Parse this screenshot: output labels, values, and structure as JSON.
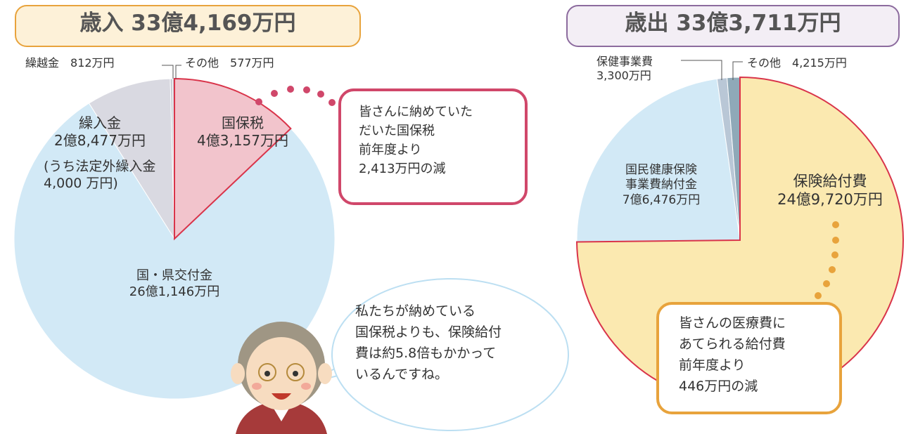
{
  "chart_data": [
    {
      "type": "pie",
      "title": "歳入 33億4,169万円",
      "categories": [
        "国保税",
        "国・県交付金",
        "繰入金",
        "繰越金",
        "その他"
      ],
      "values": [
        43157,
        261146,
        28477,
        812,
        577
      ],
      "value_labels": [
        "4億3,157万円",
        "26億1,146万円",
        "2億8,477万円",
        "812万円",
        "577万円"
      ],
      "colors": [
        "#f2c4cc",
        "#d2e9f6",
        "#d9d9e1",
        "#c9ccd4",
        "#b7bcc6"
      ],
      "annotations": [
        "皆さんに納めていた\nだいた国保税\n前年度より\n2,413万円の減",
        "(うち法定外繰入金\n4,000 万円)",
        "私たちが納めている\n国保税よりも、保険給付\n費は約5.8倍もかかって\nいるんですね。"
      ]
    },
    {
      "type": "pie",
      "title": "歳出 33億3,711万円",
      "categories": [
        "保険給付費",
        "国民健康保険\n事業費納付金",
        "保健事業費",
        "その他"
      ],
      "values": [
        249720,
        76476,
        3300,
        4215
      ],
      "value_labels": [
        "24億9,720万円",
        "7億6,476万円",
        "3,300万円",
        "4,215万円"
      ],
      "colors": [
        "#fbe9b0",
        "#d2e9f6",
        "#b9c7d6",
        "#8fa9b8"
      ],
      "annotations": [
        "皆さんの医療費に\nあてられる給付費\n前年度より\n446万円の減"
      ]
    }
  ]
}
